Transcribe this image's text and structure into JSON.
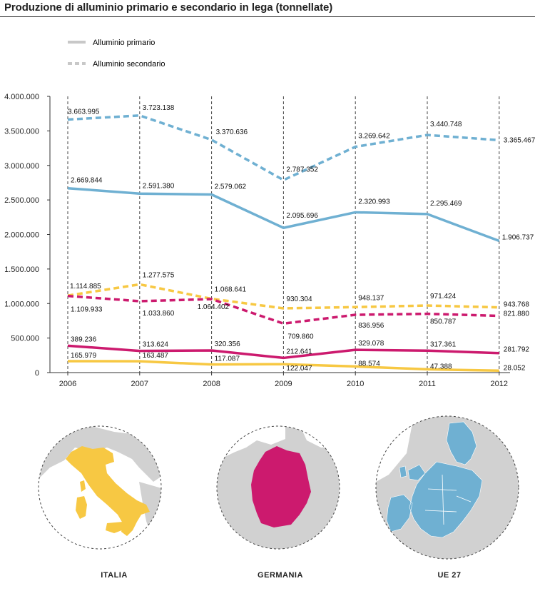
{
  "title": "Produzione di alluminio primario e secondario in lega (tonnellate)",
  "legend": [
    {
      "label": "Alluminio primario",
      "style": "solid"
    },
    {
      "label": "Alluminio secondario",
      "style": "dashed"
    }
  ],
  "chart_data": {
    "type": "line",
    "x": [
      "2006",
      "2007",
      "2008",
      "2009",
      "2010",
      "2011",
      "2012"
    ],
    "ylim": [
      0,
      4000000
    ],
    "yticks": [
      "0",
      "500.000",
      "1.000.000",
      "1.500.000",
      "2.000.000",
      "2.500.000",
      "3.000.000",
      "3.500.000",
      "4.000.000"
    ],
    "series": [
      {
        "name": "Alluminio secondario",
        "region": "UE 27",
        "style": "dashed",
        "color": "#6fb0d2",
        "values": [
          3663995,
          3723138,
          3370636,
          2787352,
          3269642,
          3440748,
          3365467
        ],
        "labels": [
          "3.663.995",
          "3.723.138",
          "3.370.636",
          "2.787.352",
          "3.269.642",
          "3.440.748",
          "3.365.467"
        ]
      },
      {
        "name": "Alluminio primario",
        "region": "UE 27",
        "style": "solid",
        "color": "#6fb0d2",
        "values": [
          2669844,
          2591380,
          2579062,
          2095696,
          2320993,
          2295469,
          1906737
        ],
        "labels": [
          "2.669.844",
          "2.591.380",
          "2.579.062",
          "2.095.696",
          "2.320.993",
          "2.295.469",
          "1.906.737"
        ]
      },
      {
        "name": "Alluminio secondario",
        "region": "ITALIA",
        "style": "dashed",
        "color": "#f7c843",
        "values": [
          1114885,
          1277575,
          1068641,
          930304,
          948137,
          971424,
          943768
        ],
        "labels": [
          "1.114.885",
          "1.277.575",
          "1.068.641",
          "930.304",
          "948.137",
          "971.424",
          "943.768"
        ]
      },
      {
        "name": "Alluminio secondario",
        "region": "GERMANIA",
        "style": "dashed",
        "color": "#cc1a6e",
        "values": [
          1109933,
          1033860,
          1064402,
          709860,
          836956,
          850787,
          821880
        ],
        "labels": [
          "1.109.933",
          "1.033.860",
          "1.064.402",
          "709.860",
          "836.956",
          "850.787",
          "821.880"
        ]
      },
      {
        "name": "Alluminio primario",
        "region": "GERMANIA",
        "style": "solid",
        "color": "#cc1a6e",
        "values": [
          389236,
          313624,
          320356,
          212641,
          329078,
          317361,
          281792
        ],
        "labels": [
          "389.236",
          "313.624",
          "320.356",
          "212.641",
          "329.078",
          "317.361",
          "281.792"
        ]
      },
      {
        "name": "Alluminio primario",
        "region": "ITALIA",
        "style": "solid",
        "color": "#f7c843",
        "values": [
          165979,
          163487,
          117087,
          122047,
          88574,
          47388,
          28052
        ],
        "labels": [
          "165.979",
          "163.487",
          "117.087",
          "122.047",
          "88.574",
          "47.388",
          "28.052"
        ]
      }
    ]
  },
  "maps": [
    {
      "label": "ITALIA",
      "color": "#f7c843"
    },
    {
      "label": "GERMANIA",
      "color": "#cc1a6e"
    },
    {
      "label": "UE 27",
      "color": "#6fb0d2"
    }
  ]
}
